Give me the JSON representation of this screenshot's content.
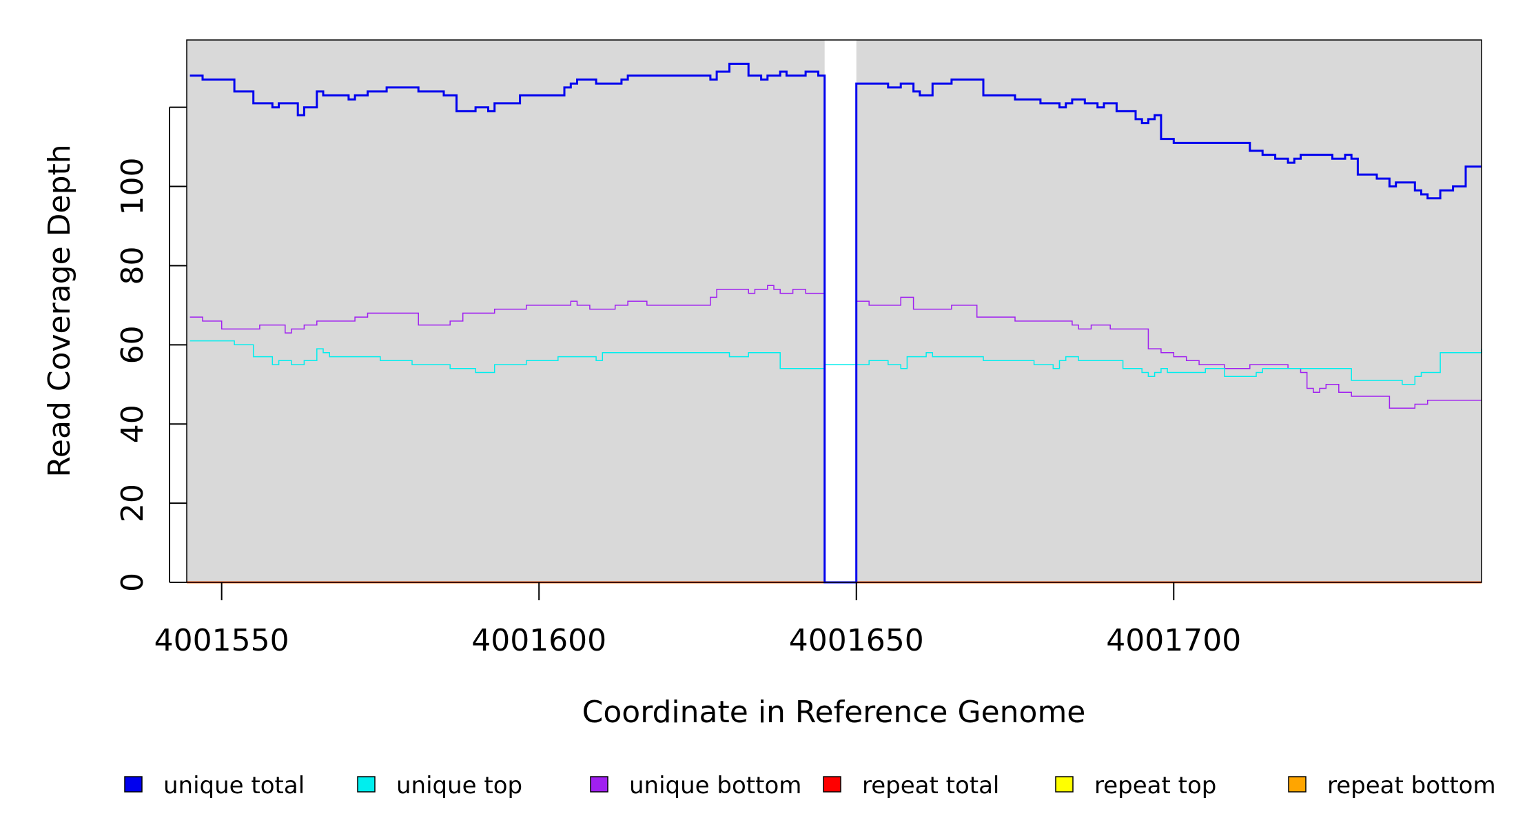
{
  "chart_data": {
    "type": "line",
    "xlabel": "Coordinate in Reference Genome",
    "ylabel": "Read Coverage Depth",
    "xlim": [
      4001544.5,
      4001748.5
    ],
    "ylim": [
      0,
      137
    ],
    "x_ticks": [
      4001550,
      4001600,
      4001650,
      4001700
    ],
    "x_tick_labels": [
      "4001550",
      "4001600",
      "4001650",
      "4001700"
    ],
    "y_ticks": [
      0,
      20,
      40,
      60,
      80,
      100,
      120
    ],
    "y_tick_labels": [
      "0",
      "20",
      "40",
      "60",
      "80",
      "100",
      ""
    ],
    "grid": false,
    "background_color": "#d9d9d9",
    "gap": {
      "x_start": 4001645,
      "x_end": 4001650
    },
    "legend_position": "bottom",
    "legend": [
      {
        "name": "unique total",
        "color": "#0000ee"
      },
      {
        "name": "unique top",
        "color": "#00eeee"
      },
      {
        "name": "unique bottom",
        "color": "#a020f0"
      },
      {
        "name": "repeat total",
        "color": "#ff0000"
      },
      {
        "name": "repeat top",
        "color": "#ffff00"
      },
      {
        "name": "repeat bottom",
        "color": "#ffa500"
      }
    ],
    "series": [
      {
        "name": "unique total",
        "color": "#0000ee",
        "x": [
          4001545,
          4001547,
          4001550,
          4001552,
          4001555,
          4001558,
          4001559,
          4001562,
          4001563,
          4001565,
          4001566,
          4001570,
          4001571,
          4001573,
          4001576,
          4001581,
          4001585,
          4001587,
          4001590,
          4001592,
          4001593,
          4001597,
          4001598,
          4001604,
          4001605,
          4001606,
          4001609,
          4001610,
          4001613,
          4001614,
          4001617,
          4001625,
          4001627,
          4001628,
          4001630,
          4001633,
          4001635,
          4001636,
          4001638,
          4001639,
          4001640,
          4001642,
          4001644,
          4001645,
          4001650,
          4001655,
          4001657,
          4001659,
          4001660,
          4001662,
          4001665,
          4001670,
          4001675,
          4001679,
          4001682,
          4001683,
          4001684,
          4001686,
          4001688,
          4001689,
          4001691,
          4001694,
          4001695,
          4001696,
          4001697,
          4001698,
          4001700,
          4001712,
          4001714,
          4001716,
          4001718,
          4001719,
          4001720,
          4001725,
          4001727,
          4001728,
          4001729,
          4001732,
          4001734,
          4001735,
          4001736,
          4001738,
          4001739,
          4001740,
          4001742,
          4001744,
          4001746,
          4001748.5
        ],
        "y": [
          128,
          127,
          127,
          124,
          121,
          120,
          121,
          118,
          120,
          124,
          123,
          122,
          123,
          124,
          125,
          124,
          123,
          119,
          120,
          119,
          121,
          123,
          123,
          125,
          126,
          127,
          126,
          126,
          127,
          128,
          128,
          128,
          127,
          129,
          131,
          128,
          127,
          128,
          129,
          128,
          128,
          129,
          128,
          0,
          126,
          125,
          126,
          124,
          123,
          126,
          127,
          123,
          122,
          121,
          120,
          121,
          122,
          121,
          120,
          121,
          119,
          117,
          116,
          117,
          118,
          112,
          111,
          109,
          108,
          107,
          106,
          107,
          108,
          107,
          108,
          107,
          103,
          102,
          100,
          101,
          101,
          99,
          98,
          97,
          99,
          100,
          105,
          105
        ]
      },
      {
        "name": "unique top",
        "color": "#00eeee",
        "x": [
          4001545,
          4001552,
          4001555,
          4001558,
          4001559,
          4001561,
          4001563,
          4001565,
          4001566,
          4001567,
          4001575,
          4001580,
          4001586,
          4001590,
          4001593,
          4001598,
          4001603,
          4001609,
          4001610,
          4001625,
          4001630,
          4001633,
          4001638,
          4001645,
          4001650,
          4001652,
          4001655,
          4001657,
          4001658,
          4001661,
          4001662,
          4001664,
          4001670,
          4001678,
          4001681,
          4001682,
          4001683,
          4001685,
          4001692,
          4001695,
          4001696,
          4001697,
          4001698,
          4001699,
          4001700,
          4001705,
          4001708,
          4001710,
          4001713,
          4001714,
          4001725,
          4001728,
          4001729,
          4001731,
          4001733,
          4001735,
          4001736,
          4001738,
          4001739,
          4001740,
          4001742,
          4001748.5
        ],
        "y": [
          61,
          60,
          57,
          55,
          56,
          55,
          56,
          59,
          58,
          57,
          56,
          55,
          54,
          53,
          55,
          56,
          57,
          56,
          58,
          58,
          57,
          58,
          54,
          55,
          55,
          56,
          55,
          54,
          57,
          58,
          57,
          57,
          56,
          55,
          54,
          56,
          57,
          56,
          54,
          53,
          52,
          53,
          54,
          53,
          53,
          54,
          52,
          52,
          53,
          54,
          54,
          51,
          51,
          51,
          51,
          51,
          50,
          52,
          53,
          53,
          58,
          59
        ]
      },
      {
        "name": "unique bottom",
        "color": "#a020f0",
        "x": [
          4001545,
          4001547,
          4001550,
          4001556,
          4001560,
          4001561,
          4001563,
          4001565,
          4001571,
          4001573,
          4001574,
          4001581,
          4001586,
          4001588,
          4001593,
          4001598,
          4001605,
          4001606,
          4001608,
          4001612,
          4001614,
          4001617,
          4001626,
          4001627,
          4001628,
          4001633,
          4001634,
          4001636,
          4001637,
          4001638,
          4001640,
          4001642,
          4001645,
          4001650,
          4001652,
          4001657,
          4001659,
          4001665,
          4001669,
          4001675,
          4001681,
          4001683,
          4001684,
          4001685,
          4001687,
          4001688,
          4001690,
          4001693,
          4001696,
          4001698,
          4001700,
          4001702,
          4001704,
          4001705,
          4001708,
          4001709,
          4001712,
          4001718,
          4001720,
          4001721,
          4001722,
          4001723,
          4001724,
          4001726,
          4001728,
          4001732,
          4001734,
          4001738,
          4001740,
          4001744,
          4001748.5
        ],
        "y": [
          67,
          66,
          64,
          65,
          63,
          64,
          65,
          66,
          67,
          68,
          68,
          65,
          66,
          68,
          69,
          70,
          71,
          70,
          69,
          70,
          71,
          70,
          70,
          72,
          74,
          73,
          74,
          75,
          74,
          73,
          74,
          73,
          0,
          71,
          70,
          72,
          69,
          70,
          67,
          66,
          66,
          66,
          65,
          64,
          65,
          65,
          64,
          64,
          59,
          58,
          57,
          56,
          55,
          55,
          54,
          54,
          55,
          54,
          53,
          49,
          48,
          49,
          50,
          48,
          47,
          47,
          44,
          45,
          46,
          46,
          46
        ]
      },
      {
        "name": "repeat total",
        "color": "#ff0000",
        "x": [
          4001544.5,
          4001748.5
        ],
        "y": [
          0,
          0
        ]
      },
      {
        "name": "repeat top",
        "color": "#ffff00",
        "x": [
          4001544.5,
          4001748.5
        ],
        "y": [
          0,
          0
        ]
      },
      {
        "name": "repeat bottom",
        "color": "#ffa500",
        "x": [
          4001544.5,
          4001748.5
        ],
        "y": [
          0,
          0
        ]
      }
    ]
  }
}
